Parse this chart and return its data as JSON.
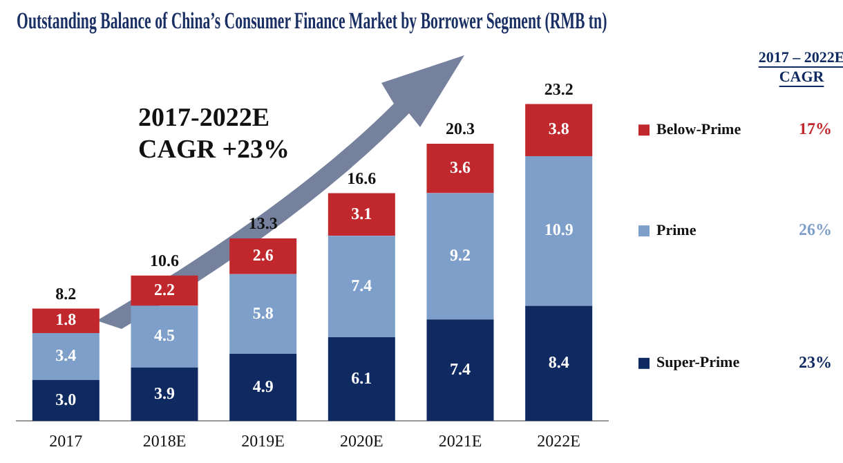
{
  "chart_data": {
    "type": "bar",
    "title": "Outstanding Balance of China’s Consumer Finance Market by Borrower Segment (RMB tn)",
    "categories": [
      "2017",
      "2018E",
      "2019E",
      "2020E",
      "2021E",
      "2022E"
    ],
    "stacked": true,
    "grid": false,
    "tick_labels": "x",
    "legend": "right",
    "series": [
      {
        "name": "Super-Prime",
        "color": "#0e2a60",
        "values": [
          3.0,
          3.9,
          4.9,
          6.1,
          7.4,
          8.4
        ],
        "value_labels": [
          "3.0",
          "3.9",
          "4.9",
          "6.1",
          "7.4",
          "8.4"
        ]
      },
      {
        "name": "Prime",
        "color": "#7e9fca",
        "values": [
          3.4,
          4.5,
          5.8,
          7.4,
          9.2,
          10.9
        ],
        "value_labels": [
          "3.4",
          "4.5",
          "5.8",
          "7.4",
          "9.2",
          "10.9"
        ]
      },
      {
        "name": "Below-Prime",
        "color": "#c0282d",
        "values": [
          1.8,
          2.2,
          2.6,
          3.1,
          3.6,
          3.8
        ],
        "value_labels": [
          "1.8",
          "2.2",
          "2.6",
          "3.1",
          "3.6",
          "3.8"
        ]
      }
    ],
    "totals": [
      "8.2",
      "10.6",
      "13.3",
      "16.6",
      "20.3",
      "23.2"
    ],
    "annotations": [
      "2017-2022E\nCAGR +23%",
      "2017 – 2022E\nCAGR",
      "23%",
      "26%",
      "17%"
    ]
  }
}
